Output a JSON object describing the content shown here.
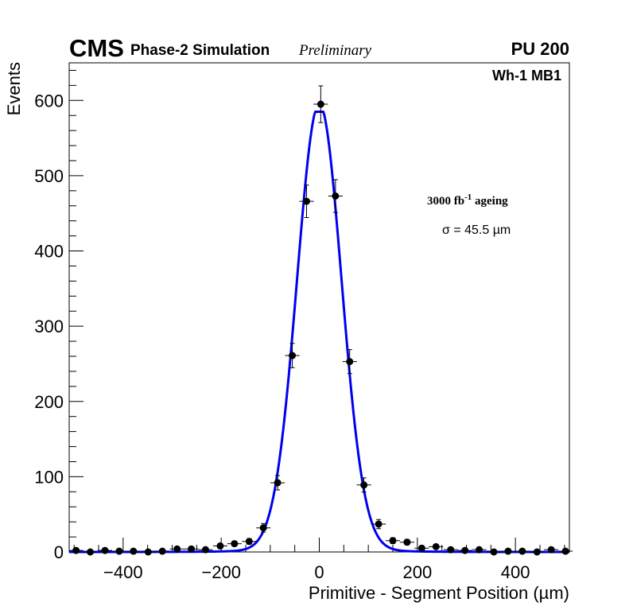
{
  "chart_data": {
    "type": "scatter",
    "header": {
      "experiment": "CMS",
      "subtitle": "Phase-2 Simulation",
      "status": "Preliminary",
      "pileup": "PU 200"
    },
    "region_label": "Wh-1 MB1",
    "ageing_label": {
      "value": "3000 fb",
      "sup": "-1",
      "suffix": " ageing"
    },
    "sigma_label": "σ = 45.5 µm",
    "xlabel": "Primitive - Segment Position (µm)",
    "ylabel": "Events",
    "xlim": [
      -510,
      510
    ],
    "ylim": [
      0,
      650
    ],
    "x_ticks": [
      -400,
      -200,
      0,
      200,
      400
    ],
    "x_tick_labels": [
      "−400",
      "−200",
      "0",
      "200",
      "400"
    ],
    "y_ticks": [
      0,
      100,
      200,
      300,
      400,
      500,
      600
    ],
    "y_tick_labels": [
      "0",
      "100",
      "200",
      "300",
      "400",
      "500",
      "600"
    ],
    "bin_width": 29.4,
    "series": [
      {
        "name": "Simulation",
        "style": "points-with-errors",
        "color": "#000000",
        "x": [
          -496,
          -467,
          -437,
          -408,
          -379,
          -349,
          -320,
          -290,
          -261,
          -232,
          -202,
          -173,
          -143,
          -114,
          -85,
          -55,
          -26,
          3,
          33,
          62,
          91,
          121,
          150,
          179,
          209,
          238,
          268,
          297,
          326,
          356,
          385,
          414,
          444,
          473,
          502
        ],
        "y": [
          2,
          0,
          2,
          1,
          1,
          0,
          1,
          4,
          4,
          3,
          8,
          11,
          14,
          32,
          92,
          261,
          466,
          595,
          473,
          253,
          89,
          37,
          15,
          13,
          5,
          7,
          3,
          2,
          3,
          0,
          1,
          1,
          0,
          3,
          1
        ]
      },
      {
        "name": "Fit",
        "style": "line",
        "color": "#0000ee",
        "function": "gaussian+tails",
        "amplitude": 585,
        "mean": 0,
        "sigma": 45.5
      }
    ]
  }
}
